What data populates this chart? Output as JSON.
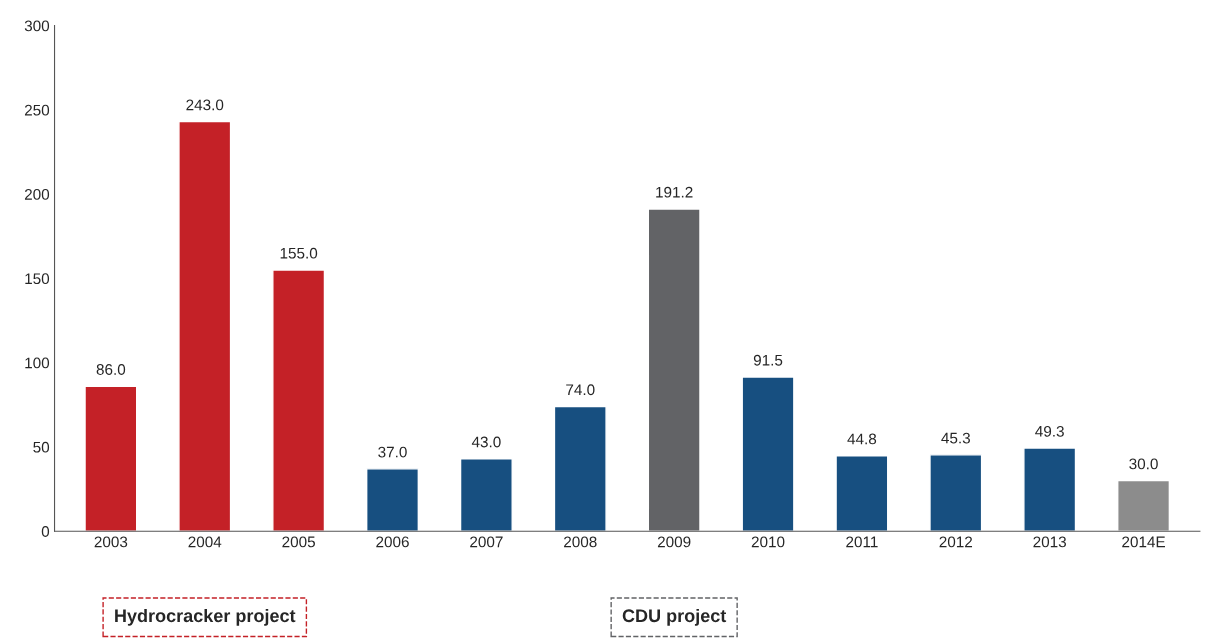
{
  "chart_data": {
    "type": "bar",
    "categories": [
      "2003",
      "2004",
      "2005",
      "2006",
      "2007",
      "2008",
      "2009",
      "2010",
      "2011",
      "2012",
      "2013",
      "2014E"
    ],
    "values": [
      86.0,
      243.0,
      155.0,
      37.0,
      43.0,
      74.0,
      191.2,
      91.5,
      44.8,
      45.3,
      49.3,
      30.0
    ],
    "colors": [
      "#c42127",
      "#c42127",
      "#c42127",
      "#174f80",
      "#174f80",
      "#174f80",
      "#626366",
      "#174f80",
      "#174f80",
      "#174f80",
      "#174f80",
      "#8c8c8c"
    ],
    "ylim": [
      0,
      300
    ],
    "yticks": [
      0,
      50,
      100,
      150,
      200,
      250,
      300
    ],
    "value_labels": [
      "86.0",
      "243.0",
      "155.0",
      "37.0",
      "43.0",
      "74.0",
      "191.2",
      "91.5",
      "44.8",
      "45.3",
      "49.3",
      "30.0"
    ],
    "grid": false,
    "annotations": [
      "Hydrocracker project",
      "CDU project"
    ]
  }
}
